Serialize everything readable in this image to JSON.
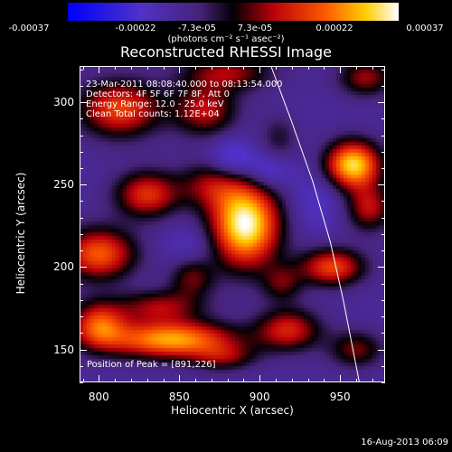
{
  "colorbar": {
    "labels": [
      "-0.00037",
      "-0.00022",
      "-7.3e-05",
      "7.3e-05",
      "0.00022",
      "0.00037"
    ],
    "units": "(photons cm⁻² s⁻¹ asec⁻²)"
  },
  "info": {
    "line1": "23-Mar-2011 08:08:40.000 to 08:13:54.000",
    "line2": "Detectors: 4F 5F 6F 7F 8F, Att 0",
    "line3": "Energy Range: 12.0 - 25.0 keV",
    "line4": "Clean    Total counts: 1.12E+04"
  },
  "peak_text": "Position of Peak = [891,226]",
  "timestamp": "16-Aug-2013 06:09",
  "chart_data": {
    "type": "heatmap",
    "title": "Reconstructed RHESSI Image",
    "xlabel": "Heliocentric X (arcsec)",
    "ylabel": "Heliocentric Y (arcsec)",
    "xlim": [
      788,
      978
    ],
    "ylim": [
      130,
      322
    ],
    "xticks": [
      800,
      850,
      900,
      950
    ],
    "yticks": [
      150,
      200,
      250,
      300
    ],
    "value_range": [
      -0.00037,
      0.00037
    ],
    "peak": {
      "x": 891,
      "y": 226
    },
    "blobs": [
      {
        "x": 891,
        "y": 226,
        "sx": 15,
        "sy": 18,
        "a": 1.0
      },
      {
        "x": 870,
        "y": 250,
        "sx": 14,
        "sy": 10,
        "a": 0.35
      },
      {
        "x": 958,
        "y": 262,
        "sx": 12,
        "sy": 10,
        "a": 0.9
      },
      {
        "x": 968,
        "y": 236,
        "sx": 10,
        "sy": 10,
        "a": 0.45
      },
      {
        "x": 830,
        "y": 244,
        "sx": 14,
        "sy": 10,
        "a": 0.55
      },
      {
        "x": 813,
        "y": 296,
        "sx": 18,
        "sy": 12,
        "a": 0.6
      },
      {
        "x": 866,
        "y": 295,
        "sx": 14,
        "sy": 11,
        "a": 0.45
      },
      {
        "x": 880,
        "y": 318,
        "sx": 20,
        "sy": 8,
        "a": 0.4
      },
      {
        "x": 912,
        "y": 278,
        "sx": 8,
        "sy": 10,
        "a": 0.2
      },
      {
        "x": 800,
        "y": 208,
        "sx": 16,
        "sy": 11,
        "a": 0.65
      },
      {
        "x": 858,
        "y": 194,
        "sx": 10,
        "sy": 9,
        "a": 0.35
      },
      {
        "x": 838,
        "y": 176,
        "sx": 18,
        "sy": 7,
        "a": 0.4
      },
      {
        "x": 945,
        "y": 200,
        "sx": 14,
        "sy": 8,
        "a": 0.6
      },
      {
        "x": 914,
        "y": 190,
        "sx": 9,
        "sy": 8,
        "a": 0.3
      },
      {
        "x": 918,
        "y": 162,
        "sx": 14,
        "sy": 9,
        "a": 0.5
      },
      {
        "x": 845,
        "y": 156,
        "sx": 28,
        "sy": 8,
        "a": 0.8
      },
      {
        "x": 800,
        "y": 165,
        "sx": 12,
        "sy": 10,
        "a": 0.6
      },
      {
        "x": 878,
        "y": 145,
        "sx": 14,
        "sy": 6,
        "a": 0.3
      },
      {
        "x": 960,
        "y": 150,
        "sx": 12,
        "sy": 8,
        "a": 0.35
      },
      {
        "x": 966,
        "y": 315,
        "sx": 12,
        "sy": 8,
        "a": 0.4
      },
      {
        "x": 905,
        "y": 258,
        "sx": 10,
        "sy": 8,
        "a": -0.25
      },
      {
        "x": 883,
        "y": 265,
        "sx": 10,
        "sy": 9,
        "a": -0.3
      },
      {
        "x": 858,
        "y": 212,
        "sx": 12,
        "sy": 10,
        "a": -0.15
      },
      {
        "x": 935,
        "y": 240,
        "sx": 12,
        "sy": 14,
        "a": -0.15
      }
    ],
    "limb": [
      [
        907,
        322
      ],
      [
        920,
        288
      ],
      [
        933,
        252
      ],
      [
        944,
        215
      ],
      [
        952,
        180
      ],
      [
        959,
        145
      ],
      [
        962,
        130
      ]
    ]
  }
}
